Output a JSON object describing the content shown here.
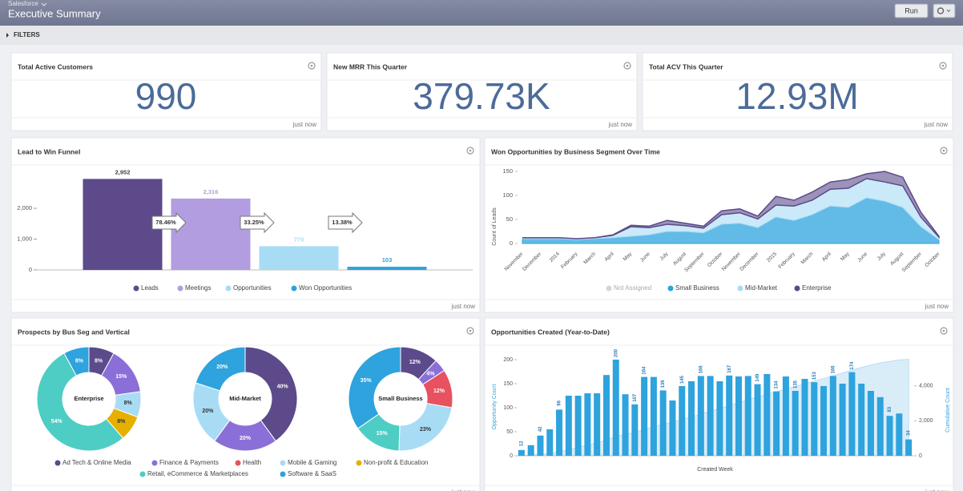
{
  "header": {
    "app": "Salesforce",
    "title": "Executive Summary",
    "run": "Run"
  },
  "filters": "FILTERS",
  "kpis": [
    {
      "title": "Total Active Customers",
      "value": "990",
      "footer": "just now"
    },
    {
      "title": "New MRR This Quarter",
      "value": "379.73K",
      "footer": "just now"
    },
    {
      "title": "Total ACV This Quarter",
      "value": "12.93M",
      "footer": "just now"
    }
  ],
  "chart_data": [
    {
      "type": "bar",
      "title": "Lead to Win Funnel",
      "categories": [
        "Leads",
        "Meetings",
        "Opportunities",
        "Won Opportunities"
      ],
      "values": [
        2952,
        2316,
        770,
        103
      ],
      "value_labels": [
        "2,952",
        "2,316",
        "770",
        "103"
      ],
      "colors": [
        "#5c4a8a",
        "#b29de0",
        "#a8dcf5",
        "#2ea3dd"
      ],
      "annotations": [
        "78.46%",
        "33.25%",
        "13.38%"
      ],
      "ylim": [
        0,
        3300
      ],
      "yticks": [
        0,
        {
          "value": 1000,
          "label": "1,000"
        },
        {
          "value": 2000,
          "label": "2,000"
        }
      ],
      "footer": "just now"
    },
    {
      "type": "area",
      "title": "Won Opportunities by Business Segment Over Time",
      "ylabel": "Count of Leads",
      "categories": [
        "November",
        "December",
        "2014",
        "February",
        "March",
        "April",
        "May",
        "June",
        "July",
        "August",
        "September",
        "October",
        "November",
        "December",
        "2015",
        "February",
        "March",
        "April",
        "May",
        "June",
        "July",
        "August",
        "September",
        "October"
      ],
      "series": [
        {
          "name": "Not Assigned",
          "color": "#d6d6d6",
          "values": [
            0,
            0,
            0,
            0,
            0,
            0,
            0,
            0,
            0,
            0,
            0,
            0,
            0,
            0,
            0,
            0,
            0,
            0,
            0,
            0,
            0,
            0,
            0,
            0
          ]
        },
        {
          "name": "Small Business",
          "color": "#2ea3dd",
          "values": [
            10,
            10,
            10,
            8,
            10,
            12,
            15,
            18,
            25,
            25,
            22,
            40,
            42,
            33,
            55,
            48,
            60,
            78,
            75,
            95,
            88,
            75,
            35,
            8
          ]
        },
        {
          "name": "Mid-Market",
          "color": "#a8dcf5",
          "values": [
            2,
            2,
            2,
            2,
            2,
            5,
            20,
            15,
            15,
            12,
            10,
            20,
            22,
            18,
            25,
            30,
            30,
            35,
            40,
            40,
            40,
            45,
            20,
            5
          ]
        },
        {
          "name": "Enterprise",
          "color": "#5c4a8a",
          "values": [
            0,
            0,
            0,
            0,
            0,
            1,
            3,
            3,
            8,
            5,
            4,
            8,
            8,
            6,
            18,
            12,
            17,
            15,
            18,
            10,
            22,
            18,
            10,
            2
          ]
        }
      ],
      "ylim": [
        0,
        160
      ],
      "yticks": [
        0,
        50,
        100,
        150
      ],
      "footer": "just now"
    },
    {
      "type": "donut",
      "title": "Prospects by Bus Seg and Vertical",
      "categories": [
        "Ad Tech & Online Media",
        "Finance & Payments",
        "Health",
        "Mobile & Gaming",
        "Non-profit & Education",
        "Retail, eCommerce & Marketplaces",
        "Software & SaaS"
      ],
      "colors": [
        "#5c4a8a",
        "#8b6fd8",
        "#e8515f",
        "#a8dcf5",
        "#e6b000",
        "#4ecdc4",
        "#2ea3dd"
      ],
      "series": [
        {
          "name": "Enterprise",
          "values": [
            8,
            15,
            null,
            8,
            8,
            54,
            8
          ],
          "value_labels": [
            "8%",
            "15%",
            null,
            "8%",
            "8%",
            "54%",
            "8%"
          ]
        },
        {
          "name": "Mid-Market",
          "values": [
            40,
            20,
            null,
            20,
            null,
            null,
            20
          ],
          "value_labels": [
            "40%",
            "20%",
            null,
            "20%",
            null,
            null,
            "20%"
          ]
        },
        {
          "name": "Small Business",
          "values": [
            12,
            4,
            12,
            23,
            null,
            15,
            35
          ],
          "value_labels": [
            "12%",
            "4%",
            "12%",
            "23%",
            null,
            "15%",
            "35%"
          ]
        }
      ],
      "footer": "just now"
    },
    {
      "type": "combo",
      "title": "Opportunities Created (Year-to-Date)",
      "xlabel": "Created Week",
      "ylabel": "Opportunity Count",
      "y2label": "Cumulative Count",
      "categories": [
        null,
        null,
        null,
        null,
        null,
        null,
        null,
        null,
        null,
        null,
        null,
        null,
        null,
        null,
        null,
        null,
        null,
        null,
        null,
        null,
        null,
        null,
        null,
        null,
        null,
        null,
        null,
        null,
        null,
        null,
        null,
        null,
        null,
        null,
        null,
        null,
        null,
        null,
        null,
        null,
        null,
        null
      ],
      "series": [
        {
          "type": "bar",
          "color": "#2ea3dd",
          "values": [
            12,
            22,
            42,
            55,
            96,
            125,
            125,
            130,
            130,
            168,
            200,
            128,
            107,
            164,
            164,
            136,
            115,
            145,
            155,
            166,
            166,
            155,
            167,
            165,
            166,
            149,
            170,
            134,
            165,
            135,
            160,
            153,
            145,
            166,
            150,
            174,
            150,
            135,
            122,
            83,
            88,
            34
          ],
          "value_labels": [
            "12",
            null,
            "42",
            null,
            "96",
            null,
            null,
            null,
            null,
            null,
            "200",
            null,
            "107",
            "164",
            null,
            "136",
            null,
            "145",
            null,
            "166",
            null,
            null,
            "167",
            null,
            null,
            "149",
            null,
            "134",
            null,
            "135",
            null,
            "153",
            null,
            "166",
            null,
            "174",
            null,
            null,
            null,
            "83",
            null,
            "34"
          ]
        },
        {
          "type": "area",
          "axis": "y2",
          "color": "#cfe9f8",
          "values": [
            12,
            34,
            76,
            131,
            227,
            352,
            477,
            607,
            737,
            905,
            1105,
            1233,
            1340,
            1504,
            1668,
            1804,
            1919,
            2064,
            2219,
            2385,
            2551,
            2706,
            2873,
            3038,
            3204,
            3353,
            3523,
            3657,
            3822,
            3957,
            4117,
            4270,
            4415,
            4581,
            4731,
            4905,
            5055,
            5190,
            5312,
            5395,
            5483,
            5517
          ]
        }
      ],
      "ylim": [
        0,
        200
      ],
      "yticks": [
        0,
        50,
        100,
        150,
        200
      ],
      "y2lim": [
        0,
        5500
      ],
      "y2ticks": [
        0,
        {
          "value": 2000,
          "label": "2,000"
        },
        {
          "value": 4000,
          "label": "4,000"
        }
      ],
      "footer": "just now"
    }
  ]
}
